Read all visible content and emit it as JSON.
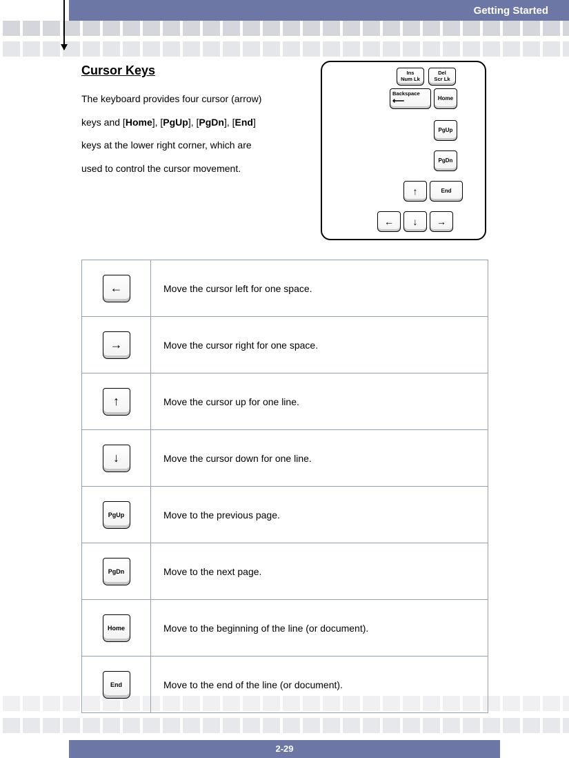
{
  "header": {
    "title": "Getting Started"
  },
  "section": {
    "title": "Cursor Keys",
    "lines": [
      "The keyboard provides four cursor",
      "(arrow) keys and keys at the lower",
      "right corner, which are used to",
      "control the cursor movement."
    ],
    "bold_keys": [
      "Home",
      "PgUp",
      "PgDn",
      "End"
    ]
  },
  "diagram_keys": {
    "ins": {
      "l1": "Ins",
      "l2": "Num Lk"
    },
    "del": {
      "l1": "Del",
      "l2": "Scr Lk"
    },
    "backspace": "Backspace",
    "home": "Home",
    "pgup": "PgUp",
    "pgdn": "PgDn",
    "end": "End"
  },
  "table": [
    {
      "icon_type": "arrow",
      "glyph": "←",
      "desc": "Move the cursor left for one space."
    },
    {
      "icon_type": "arrow",
      "glyph": "→",
      "desc": "Move the cursor right for one space."
    },
    {
      "icon_type": "arrow",
      "glyph": "↑",
      "desc": "Move the cursor up for one line."
    },
    {
      "icon_type": "arrow",
      "glyph": "↓",
      "desc": "Move the cursor down for one line."
    },
    {
      "icon_type": "text",
      "glyph": "PgUp",
      "desc": "Move to the previous page."
    },
    {
      "icon_type": "text",
      "glyph": "PgDn",
      "desc": "Move to the next page."
    },
    {
      "icon_type": "text",
      "glyph": "Home",
      "desc": "Move to the beginning of the line (or document)."
    },
    {
      "icon_type": "text",
      "glyph": "End",
      "desc": "Move to the end of the line (or document)."
    }
  ],
  "footer": {
    "page": "2-29"
  },
  "colors": {
    "bar": "#6d77a6",
    "deco": "#d5d6dc",
    "border": "#9aa0a8"
  }
}
